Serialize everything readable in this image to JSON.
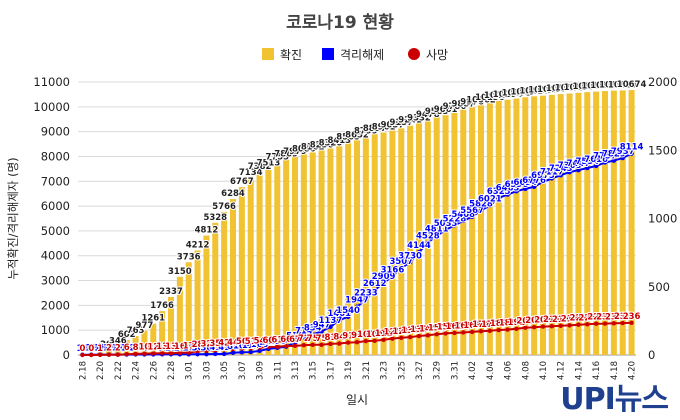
{
  "chart_data": {
    "type": "bar",
    "title": "코로나19 현황",
    "xlabel": "일시",
    "ylabel": "누적확진/격리해제자 (명)",
    "left_ylim": [
      0,
      11000
    ],
    "left_ticks": [
      0,
      1000,
      2000,
      3000,
      4000,
      5000,
      6000,
      7000,
      8000,
      9000,
      10000,
      11000
    ],
    "right_ylim": [
      0,
      2000
    ],
    "right_ticks": [
      0,
      500,
      1000,
      1500,
      2000
    ],
    "grid": true,
    "legend_position": "top-center",
    "x_tick_labels": [
      "2.18",
      "2.20",
      "2.22",
      "2.24",
      "2.26",
      "2.28",
      "3.01",
      "3.03",
      "3.05",
      "3.07",
      "3.09",
      "3.11",
      "3.13",
      "3.15",
      "3.17",
      "3.19",
      "3.21",
      "3.23",
      "3.25",
      "3.27",
      "3.29",
      "3.31",
      "4.02",
      "4.04",
      "4.06",
      "4.08",
      "4.10",
      "4.12",
      "4.14",
      "4.16",
      "4.18",
      "4.20"
    ],
    "series": [
      {
        "name": "확진",
        "color": "#f1c232",
        "axis": "left",
        "values": [
          31,
          51,
          104,
          204,
          346,
          602,
          763,
          977,
          1261,
          1766,
          2337,
          3150,
          3736,
          4212,
          4812,
          5328,
          5766,
          6284,
          6767,
          7134,
          7382,
          7513,
          7755,
          7869,
          7979,
          8086,
          8162,
          8236,
          8320,
          8413,
          8565,
          8652,
          8799,
          8897,
          8961,
          9037,
          9137,
          9241,
          9332,
          9478,
          9583,
          9661,
          9786,
          9887,
          9976,
          10062,
          10156,
          10237,
          10284,
          10331,
          10384,
          10423,
          10450,
          10480,
          10512,
          10537,
          10564,
          10591,
          10613,
          10635,
          10653,
          10661,
          10674
        ]
      },
      {
        "name": "격리해제",
        "color": "#0000ff",
        "axis": "left",
        "values": [
          10,
          12,
          16,
          16,
          17,
          18,
          22,
          22,
          24,
          26,
          27,
          27,
          28,
          30,
          30,
          41,
          41,
          88,
          108,
          118,
          166,
          247,
          288,
          333,
          510,
          714,
          834,
          947,
          1137,
          1401,
          1540,
          1947,
          2233,
          2612,
          2909,
          3166,
          3507,
          3730,
          4144,
          4528,
          4811,
          5033,
          5228,
          5408,
          5567,
          5828,
          6021,
          6325,
          6463,
          6598,
          6694,
          6776,
          6973,
          7117,
          7243,
          7368,
          7447,
          7534,
          7616,
          7757,
          7829,
          7937,
          8114
        ]
      },
      {
        "name": "사망",
        "color": "#cc0000",
        "axis": "right",
        "values": [
          0,
          0,
          1,
          2,
          2,
          6,
          8,
          10,
          12,
          13,
          13,
          16,
          17,
          28,
          32,
          35,
          42,
          44,
          50,
          51,
          54,
          60,
          61,
          66,
          67,
          72,
          75,
          75,
          81,
          84,
          91,
          94,
          102,
          104,
          111,
          120,
          126,
          131,
          139,
          144,
          152,
          158,
          162,
          165,
          169,
          174,
          177,
          183,
          186,
          192,
          200,
          204,
          208,
          211,
          214,
          217,
          222,
          225,
          229,
          230,
          232,
          234,
          236
        ]
      }
    ],
    "logo_text": "UPI뉴스"
  }
}
